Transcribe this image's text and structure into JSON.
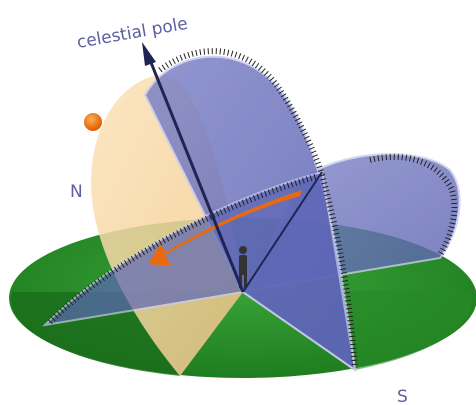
{
  "labels": {
    "pole": "celestial pole",
    "north": "N",
    "south": "S"
  }
}
